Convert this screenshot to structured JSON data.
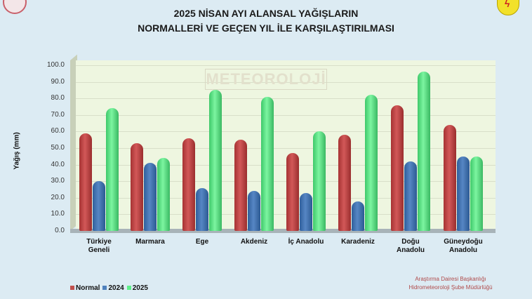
{
  "header": {
    "title_line1": "2025 NİSAN AYI ALANSAL YAĞIŞLARIN",
    "title_line2": "NORMALLERİ VE GEÇEN YIL İLE KARŞILAŞTIRILMASI",
    "logo_left": "ministry-emblem-icon",
    "logo_right": "meteorology-shield-icon"
  },
  "watermark": "METEOROLOJİ",
  "footer": {
    "credit_line1": "Araştırma Dairesi Başkanlığı",
    "credit_line2": "Hidrometeoroloji Şube Müdürlüğü"
  },
  "colors": {
    "Normal": "#c0504d",
    "2024": "#4f81bd",
    "2025": "#5ef08a"
  },
  "chart_data": {
    "type": "bar",
    "title": "2025 NİSAN AYI ALANSAL YAĞIŞLARIN NORMALLERİ VE GEÇEN YIL İLE KARŞILAŞTIRILMASI",
    "xlabel": "",
    "ylabel": "Yağış (mm)",
    "ylim": [
      0,
      100
    ],
    "yticks": [
      "0.0",
      "10.0",
      "20.0",
      "30.0",
      "40.0",
      "50.0",
      "60.0",
      "70.0",
      "80.0",
      "90.0",
      "100.0"
    ],
    "grid": true,
    "legend_position": "bottom-left",
    "categories": [
      "Türkiye Geneli",
      "Marmara",
      "Ege",
      "Akdeniz",
      "İç Anadolu",
      "Karadeniz",
      "Doğu Anadolu",
      "Güneydoğu Anadolu"
    ],
    "series": [
      {
        "name": "Normal",
        "values": [
          59,
          53,
          56,
          55,
          47,
          58,
          76,
          64
        ]
      },
      {
        "name": "2024",
        "values": [
          30,
          41,
          26,
          24,
          23,
          18,
          42,
          45
        ]
      },
      {
        "name": "2025",
        "values": [
          74,
          44,
          85,
          81,
          60,
          82,
          96,
          45
        ]
      }
    ]
  }
}
